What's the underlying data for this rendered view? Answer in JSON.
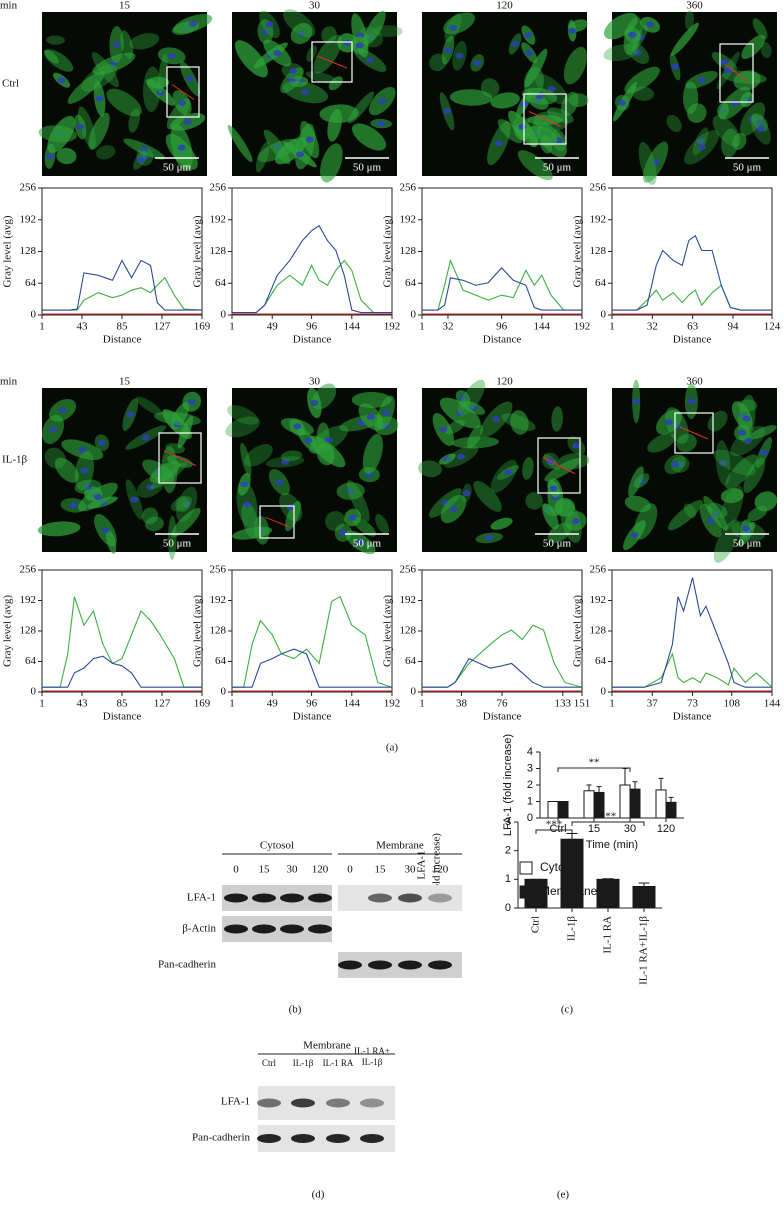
{
  "panel_labels": [
    "(a)",
    "(b)",
    "(c)",
    "(d)",
    "(e)"
  ],
  "panel_a": {
    "header": "min",
    "times": [
      "15",
      "30",
      "120",
      "360"
    ],
    "rows": [
      {
        "label": "Ctrl",
        "scale_bars": [
          "50 μm",
          "50 μm",
          "50 μm",
          "50 μm"
        ]
      },
      {
        "label": "IL-1β",
        "scale_bars": [
          "50 μm",
          "50 μm",
          "50 μm",
          "50 μm"
        ]
      }
    ]
  },
  "panel_b": {
    "groups": [
      "Cytosol",
      "Membrane"
    ],
    "lanes": [
      "0",
      "15",
      "30",
      "120",
      "0",
      "15",
      "30",
      "120"
    ],
    "rows": [
      "LFA-1",
      "β-Actin",
      "Pan-cadherin"
    ]
  },
  "panel_d": {
    "group": "Membrane",
    "lanes": [
      "Ctrl",
      "IL-1β",
      "IL-1 RA",
      [
        "IL-1 RA+",
        "IL-1β"
      ]
    ],
    "rows": [
      "LFA-1",
      "Pan-cadherin"
    ]
  },
  "chart_data": [
    {
      "type": "line",
      "xlabel": "Distance",
      "ylabel": "Gray level (avg)",
      "xlim": [
        1,
        169
      ],
      "xticks": [
        1,
        43,
        85,
        127,
        169
      ],
      "ylim": [
        0,
        256
      ],
      "yticks": [
        0,
        64,
        128,
        192,
        256
      ],
      "x": [
        1,
        30,
        38,
        45,
        60,
        75,
        85,
        95,
        105,
        115,
        122,
        130,
        140,
        150,
        169
      ],
      "series": [
        {
          "color": "#3cb043",
          "values": [
            10,
            10,
            10,
            30,
            45,
            35,
            40,
            50,
            55,
            45,
            60,
            75,
            40,
            12,
            10
          ]
        },
        {
          "color": "#2b4a9b",
          "values": [
            10,
            10,
            12,
            85,
            80,
            70,
            110,
            75,
            110,
            100,
            25,
            10,
            10,
            10,
            10
          ]
        }
      ]
    },
    {
      "type": "line",
      "xlabel": "Distance",
      "ylabel": "Gray level (avg)",
      "xlim": [
        1,
        192
      ],
      "xticks": [
        1,
        49,
        96,
        144,
        192
      ],
      "ylim": [
        0,
        256
      ],
      "yticks": [
        0,
        64,
        128,
        192,
        256
      ],
      "x": [
        1,
        30,
        40,
        55,
        70,
        85,
        96,
        105,
        115,
        125,
        135,
        144,
        155,
        170,
        192
      ],
      "series": [
        {
          "color": "#3cb043",
          "values": [
            5,
            5,
            20,
            60,
            80,
            60,
            100,
            70,
            60,
            90,
            110,
            90,
            30,
            5,
            5
          ]
        },
        {
          "color": "#2b4a9b",
          "values": [
            5,
            5,
            20,
            80,
            110,
            150,
            170,
            180,
            150,
            130,
            80,
            10,
            5,
            5,
            5
          ]
        }
      ]
    },
    {
      "type": "line",
      "xlabel": "Distance",
      "ylabel": "Gray level (avg)",
      "xlim": [
        1,
        192
      ],
      "xticks": [
        1,
        32,
        96,
        144,
        192
      ],
      "ylim": [
        0,
        256
      ],
      "yticks": [
        0,
        64,
        128,
        192,
        256
      ],
      "x": [
        1,
        20,
        28,
        35,
        50,
        65,
        80,
        96,
        110,
        125,
        135,
        144,
        155,
        170,
        192
      ],
      "series": [
        {
          "color": "#3cb043",
          "values": [
            10,
            10,
            60,
            110,
            50,
            40,
            30,
            40,
            35,
            90,
            60,
            80,
            40,
            10,
            10
          ]
        },
        {
          "color": "#2b4a9b",
          "values": [
            10,
            10,
            20,
            75,
            70,
            60,
            65,
            95,
            70,
            60,
            15,
            10,
            10,
            10,
            10
          ]
        }
      ]
    },
    {
      "type": "line",
      "xlabel": "Distance",
      "ylabel": "Gray level (avg)",
      "xlim": [
        1,
        124
      ],
      "xticks": [
        1,
        32,
        63,
        94,
        124
      ],
      "ylim": [
        0,
        256
      ],
      "yticks": [
        0,
        64,
        128,
        192,
        256
      ],
      "x": [
        1,
        20,
        28,
        35,
        40,
        48,
        55,
        60,
        65,
        70,
        78,
        85,
        92,
        100,
        124
      ],
      "series": [
        {
          "color": "#3cb043",
          "values": [
            10,
            10,
            30,
            50,
            30,
            45,
            25,
            40,
            50,
            20,
            45,
            60,
            15,
            10,
            10
          ]
        },
        {
          "color": "#2b4a9b",
          "values": [
            10,
            10,
            20,
            100,
            130,
            110,
            100,
            150,
            160,
            130,
            130,
            60,
            15,
            10,
            10
          ]
        }
      ]
    },
    {
      "type": "line",
      "xlabel": "Distance",
      "ylabel": "Gray level (avg)",
      "xlim": [
        1,
        169
      ],
      "xticks": [
        1,
        43,
        85,
        127,
        169
      ],
      "ylim": [
        0,
        256
      ],
      "yticks": [
        0,
        64,
        128,
        192,
        256
      ],
      "x": [
        1,
        20,
        28,
        35,
        45,
        55,
        65,
        75,
        85,
        95,
        105,
        115,
        125,
        140,
        150,
        169
      ],
      "series": [
        {
          "color": "#3cb043",
          "values": [
            10,
            10,
            80,
            200,
            140,
            170,
            100,
            60,
            70,
            120,
            170,
            150,
            120,
            70,
            10,
            10
          ]
        },
        {
          "color": "#2b4a9b",
          "values": [
            10,
            10,
            10,
            40,
            50,
            70,
            75,
            60,
            55,
            40,
            10,
            10,
            10,
            10,
            10,
            10
          ]
        }
      ]
    },
    {
      "type": "line",
      "xlabel": "Distance",
      "ylabel": "Gray level (avg)",
      "xlim": [
        1,
        192
      ],
      "xticks": [
        1,
        49,
        96,
        144,
        192
      ],
      "ylim": [
        0,
        256
      ],
      "yticks": [
        0,
        64,
        128,
        192,
        256
      ],
      "x": [
        1,
        15,
        25,
        35,
        49,
        60,
        75,
        90,
        105,
        120,
        130,
        144,
        160,
        175,
        192
      ],
      "series": [
        {
          "color": "#3cb043",
          "values": [
            10,
            10,
            100,
            150,
            120,
            80,
            70,
            90,
            60,
            190,
            200,
            140,
            120,
            20,
            10
          ]
        },
        {
          "color": "#2b4a9b",
          "values": [
            10,
            10,
            10,
            60,
            70,
            80,
            90,
            80,
            10,
            10,
            10,
            10,
            10,
            10,
            10
          ]
        }
      ]
    },
    {
      "type": "line",
      "xlabel": "Distance",
      "ylabel": "Gray level (avg)",
      "xlim": [
        1,
        151
      ],
      "xticks": [
        1,
        38,
        76,
        133,
        151
      ],
      "ylim": [
        0,
        256
      ],
      "yticks": [
        0,
        64,
        128,
        192,
        256
      ],
      "x": [
        1,
        25,
        32,
        45,
        55,
        65,
        76,
        85,
        95,
        105,
        115,
        125,
        135,
        151
      ],
      "series": [
        {
          "color": "#3cb043",
          "values": [
            10,
            10,
            20,
            60,
            80,
            100,
            120,
            130,
            110,
            140,
            130,
            60,
            20,
            10
          ]
        },
        {
          "color": "#2b4a9b",
          "values": [
            10,
            10,
            20,
            70,
            60,
            50,
            55,
            60,
            40,
            20,
            10,
            10,
            10,
            10
          ]
        }
      ]
    },
    {
      "type": "line",
      "xlabel": "Distance",
      "ylabel": "Gray level (avg)",
      "xlim": [
        1,
        144
      ],
      "xticks": [
        1,
        37,
        73,
        108,
        144
      ],
      "ylim": [
        0,
        256
      ],
      "yticks": [
        0,
        64,
        128,
        192,
        256
      ],
      "x": [
        1,
        30,
        45,
        55,
        60,
        65,
        73,
        80,
        85,
        95,
        105,
        110,
        120,
        130,
        144
      ],
      "series": [
        {
          "color": "#3cb043",
          "values": [
            10,
            10,
            30,
            80,
            30,
            20,
            30,
            20,
            40,
            30,
            15,
            50,
            20,
            40,
            10
          ]
        },
        {
          "color": "#2b4a9b",
          "values": [
            10,
            10,
            20,
            100,
            200,
            170,
            240,
            160,
            180,
            120,
            60,
            20,
            10,
            10,
            10
          ]
        }
      ]
    },
    {
      "type": "bar",
      "xlabel": "Time (min)",
      "ylabel": "LFA-1 (fold increase)",
      "categories": [
        "Ctrl",
        "15",
        "30",
        "120"
      ],
      "ylim": [
        0,
        4
      ],
      "yticks": [
        0,
        1,
        2,
        3,
        4
      ],
      "legend": "bottom",
      "annotations": [
        "**"
      ],
      "series": [
        {
          "name": "Cytosol",
          "color": "#ffffff",
          "values": [
            1,
            1.65,
            2.0,
            1.7
          ],
          "errors": [
            0,
            0.35,
            1.0,
            0.7
          ]
        },
        {
          "name": "Membrane",
          "color": "#1a1a1a",
          "values": [
            1,
            1.55,
            1.75,
            0.95
          ],
          "errors": [
            0,
            0.35,
            0.45,
            0.3
          ]
        }
      ]
    },
    {
      "type": "bar",
      "ylabel": [
        "LFA-1",
        "(fold increase)"
      ],
      "categories": [
        "Ctrl",
        "IL-1β",
        "IL-1 RA",
        "IL-1 RA+IL-1β"
      ],
      "ylim": [
        0,
        3
      ],
      "yticks": [
        0,
        1,
        2,
        3
      ],
      "annotations": [
        "***",
        "***"
      ],
      "series": [
        {
          "color": "#1a1a1a",
          "values": [
            1,
            2.4,
            1.0,
            0.75
          ],
          "errors": [
            0,
            0.2,
            0.02,
            0.12
          ]
        }
      ]
    }
  ]
}
